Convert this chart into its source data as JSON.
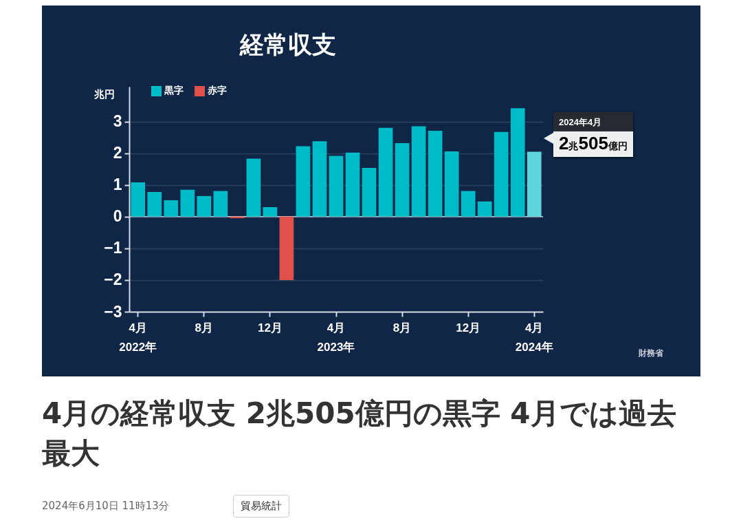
{
  "chart_data": {
    "type": "bar",
    "title": "経常収支",
    "ylabel": "兆円",
    "categories": [
      "4月\n2022年",
      null,
      null,
      null,
      "8月",
      null,
      null,
      null,
      "12月",
      null,
      null,
      null,
      "4月\n2023年",
      null,
      null,
      null,
      "8月",
      null,
      null,
      null,
      "12月",
      null,
      null,
      null,
      "4月\n2024年"
    ],
    "series": [
      {
        "name": "黒字",
        "color": "#00bcc8",
        "colors": [
          "#00bcc8",
          "#00bcc8",
          "#00bcc8",
          "#00bcc8",
          "#00bcc8",
          "#00bcc8",
          null,
          "#00bcc8",
          "#00bcc8",
          null,
          "#00bcc8",
          "#00bcc8",
          "#00bcc8",
          "#00bcc8",
          "#00bcc8",
          "#00bcc8",
          "#00bcc8",
          "#00bcc8",
          "#00bcc8",
          "#00bcc8",
          "#00bcc8",
          "#00bcc8",
          "#00bcc8",
          "#00bcc8",
          "#5fd5db"
        ],
        "values": [
          1.08,
          0.78,
          0.52,
          0.85,
          0.65,
          0.81,
          null,
          1.83,
          0.3,
          null,
          2.22,
          2.38,
          1.92,
          2.02,
          1.54,
          2.8,
          2.32,
          2.85,
          2.71,
          2.06,
          0.81,
          0.48,
          2.67,
          3.42,
          2.05
        ]
      },
      {
        "name": "赤字",
        "color": "#e0514b",
        "values": [
          null,
          null,
          null,
          null,
          null,
          null,
          -0.05,
          null,
          null,
          -2.0,
          null,
          null,
          null,
          null,
          null,
          null,
          null,
          null,
          null,
          null,
          null,
          null,
          null,
          null,
          null
        ]
      }
    ],
    "ylim": [
      -3,
      4.1
    ],
    "yticks": [
      -3,
      -2,
      -1,
      0,
      1,
      2,
      3
    ],
    "grid": "y",
    "legend": "top left",
    "annotations": [
      "2024年4月",
      "2兆505億円",
      "財務省",
      "4月の経常収支 2兆505億円の黒字 4月では過去最大",
      "2024年6月10日 11時13分",
      "貿易統計"
    ]
  }
}
